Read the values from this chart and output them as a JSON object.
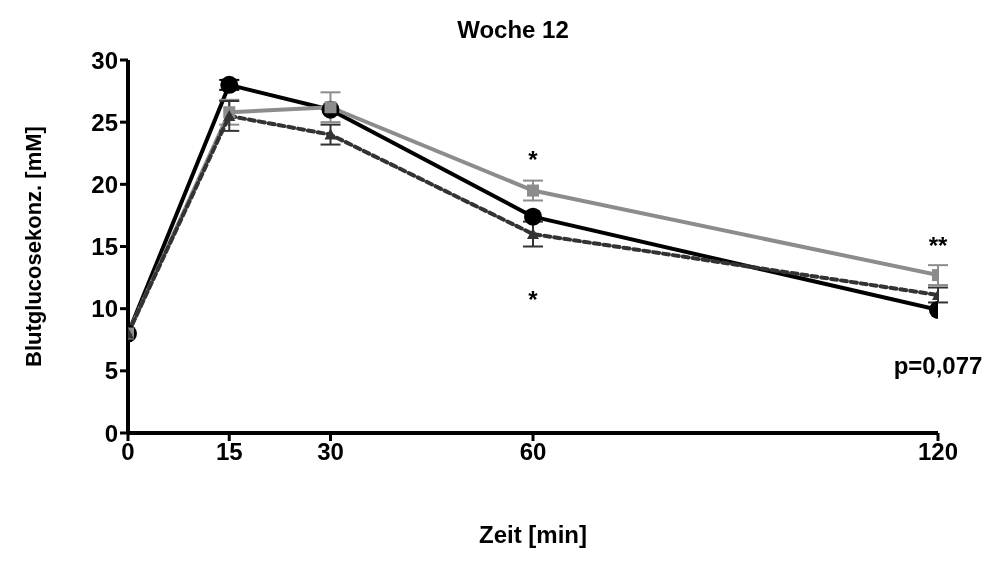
{
  "chart_data": {
    "type": "line",
    "title": "Woche 12",
    "xlabel": "Zeit [min]",
    "ylabel": "Blutglucosekonz. [mM]",
    "x": [
      0,
      15,
      30,
      60,
      120
    ],
    "series": [
      {
        "color": "#000000",
        "marker": "circle",
        "line_style": "solid",
        "values": [
          8.0,
          28.0,
          26.0,
          17.4,
          9.9
        ],
        "errors": [
          null,
          0.4,
          null,
          null,
          null
        ]
      },
      {
        "color": "#8c8c8c",
        "marker": "square",
        "line_style": "solid",
        "values": [
          8.0,
          25.8,
          26.2,
          19.5,
          12.7
        ],
        "errors": [
          null,
          1.0,
          1.2,
          0.8,
          0.8
        ]
      },
      {
        "color": "#333333",
        "marker": "triangle",
        "line_style": "dashed",
        "values": [
          8.0,
          25.5,
          24.0,
          16.0,
          11.1
        ],
        "errors": [
          null,
          1.2,
          0.8,
          1.0,
          0.6
        ]
      }
    ],
    "xlim": [
      0,
      120
    ],
    "xticks": [
      0,
      15,
      30,
      60,
      120
    ],
    "ylim": [
      0,
      30
    ],
    "yticks": [
      0,
      5,
      10,
      15,
      20,
      25,
      30
    ],
    "grid": false,
    "legend": false,
    "annotations": [
      "*",
      "*",
      "**",
      "p=0,077"
    ]
  }
}
